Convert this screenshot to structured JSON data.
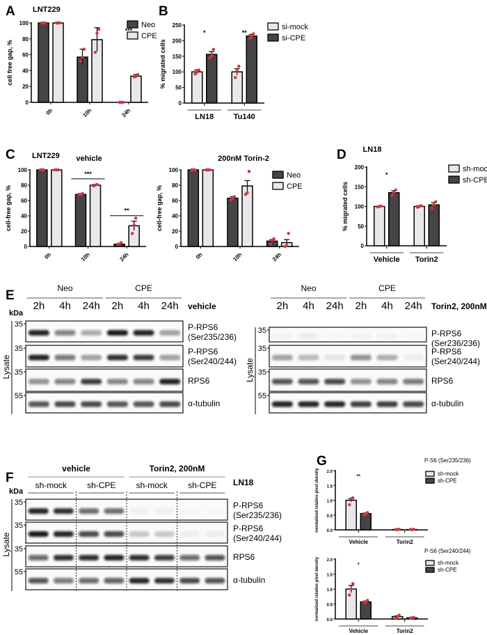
{
  "panel_letters": {
    "A": "A",
    "B": "B",
    "C": "C",
    "D": "D",
    "E": "E",
    "F": "F",
    "G": "G"
  },
  "colors": {
    "dark_bar": "#454545",
    "light_bar": "#e8e8e8",
    "points": "#d8323c"
  },
  "chart_data": [
    {
      "id": "A",
      "type": "bar",
      "title": "LNT229",
      "ylabel": "cell free gap, %",
      "categories": [
        "0h",
        "10h",
        "24h"
      ],
      "ylim": [
        0,
        100
      ],
      "yticks": [
        0,
        20,
        40,
        60,
        80,
        100
      ],
      "legend": "top-right",
      "series": [
        {
          "name": "Neo",
          "color": "dark",
          "values": [
            100,
            57,
            0
          ],
          "errors": [
            0,
            10,
            0
          ],
          "points": [
            [
              100,
              100,
              100
            ],
            [
              52,
              57,
              67
            ],
            [
              0,
              0,
              0
            ]
          ]
        },
        {
          "name": "CPE",
          "color": "light",
          "values": [
            100,
            79,
            33
          ],
          "errors": [
            0,
            15,
            2
          ],
          "points": [
            [
              100,
              100,
              100
            ],
            [
              63,
              87,
              92
            ],
            [
              32,
              33,
              35
            ]
          ]
        }
      ],
      "significance": [
        {
          "category": "24h",
          "label": "***"
        }
      ]
    },
    {
      "id": "B",
      "type": "bar",
      "title": "",
      "ylabel": "% migrated cells",
      "categories": [
        "LN18",
        "Tu140"
      ],
      "ylim": [
        0,
        250
      ],
      "yticks": [
        0,
        50,
        100,
        150,
        200,
        250
      ],
      "legend": "top-right",
      "series": [
        {
          "name": "si-mock",
          "color": "light",
          "values": [
            100,
            100
          ],
          "errors": [
            6,
            10
          ],
          "points": [
            [
              93,
              100,
              106
            ],
            [
              82,
              103,
              118
            ]
          ]
        },
        {
          "name": "si-CPE",
          "color": "dark",
          "values": [
            156,
            215
          ],
          "errors": [
            9,
            5
          ],
          "points": [
            [
              145,
              152,
              172
            ],
            [
              208,
              214,
              222
            ]
          ]
        }
      ],
      "significance": [
        {
          "category": "LN18",
          "label": "*"
        },
        {
          "category": "Tu140",
          "label": "**"
        }
      ]
    },
    {
      "id": "C1",
      "type": "bar",
      "title": "vehicle",
      "ylabel": "cell-free gap, %",
      "categories": [
        "0h",
        "10h",
        "24h"
      ],
      "ylim": [
        0,
        100
      ],
      "yticks": [
        0,
        20,
        40,
        60,
        80,
        100
      ],
      "series": [
        {
          "name": "Neo",
          "color": "dark",
          "values": [
            100,
            68,
            3
          ],
          "errors": [
            0,
            1,
            1
          ],
          "points": [
            [
              100,
              100,
              100
            ],
            [
              68,
              68,
              69
            ],
            [
              3,
              3,
              5
            ]
          ]
        },
        {
          "name": "CPE",
          "color": "light",
          "values": [
            100,
            80,
            27
          ],
          "errors": [
            0,
            1,
            6
          ],
          "points": [
            [
              100,
              100,
              100
            ],
            [
              79,
              80,
              81
            ],
            [
              17,
              28,
              37
            ]
          ]
        }
      ],
      "significance": [
        {
          "category": "10h",
          "label": "***"
        },
        {
          "category": "24h",
          "label": "**"
        }
      ]
    },
    {
      "id": "C2",
      "type": "bar",
      "title": "200nM Torin-2",
      "ylabel": "cell-free gap, %",
      "categories": [
        "0h",
        "10h",
        "24h"
      ],
      "ylim": [
        0,
        100
      ],
      "yticks": [
        0,
        20,
        40,
        60,
        80,
        100
      ],
      "legend": "top-right",
      "series": [
        {
          "name": "Neo",
          "color": "dark",
          "values": [
            100,
            63,
            7
          ],
          "errors": [
            0,
            2,
            2
          ],
          "points": [
            [
              100,
              100,
              100
            ],
            [
              61,
              63,
              65
            ],
            [
              3,
              8,
              10
            ]
          ]
        },
        {
          "name": "CPE",
          "color": "light",
          "values": [
            100,
            79,
            5
          ],
          "errors": [
            0,
            7,
            4
          ],
          "points": [
            [
              100,
              100,
              100
            ],
            [
              68,
              70,
              98
            ],
            [
              0,
              1,
              17
            ]
          ]
        }
      ],
      "significance": []
    },
    {
      "id": "D",
      "type": "bar",
      "title": "LN18",
      "ylabel": "% migrated cells",
      "categories": [
        "Vehicle",
        "Torin2"
      ],
      "ylim": [
        0,
        200
      ],
      "yticks": [
        0,
        50,
        100,
        150,
        200
      ],
      "legend": "top-right",
      "series": [
        {
          "name": "sh-mock",
          "color": "light",
          "values": [
            100,
            100
          ],
          "errors": [
            1,
            2
          ],
          "points": [
            [
              99,
              100,
              101
            ],
            [
              98,
              100,
              102
            ]
          ]
        },
        {
          "name": "sh-CPE",
          "color": "dark",
          "values": [
            135,
            104
          ],
          "errors": [
            5,
            6
          ],
          "points": [
            [
              128,
              135,
              142
            ],
            [
              96,
              104,
              112
            ]
          ]
        }
      ],
      "significance": [
        {
          "category": "Vehicle",
          "label": "*"
        }
      ]
    },
    {
      "id": "G1",
      "type": "bar",
      "title": "P-S6 (Ser235/236)",
      "ylabel": "normalized relative pixel density",
      "categories": [
        "Vehicle",
        "Torin2"
      ],
      "ylim": [
        0,
        2.0
      ],
      "yticks": [
        "0.0",
        "0.5",
        "1.0",
        "1.5",
        "2.0"
      ],
      "legend": "top-right",
      "series": [
        {
          "name": "sh-mock",
          "color": "light",
          "values": [
            1.0,
            0.01
          ],
          "errors": [
            0.05,
            0.005
          ],
          "points": [
            [
              0.85,
              1.05,
              1.08
            ],
            [
              0.01,
              0.01,
              0.02
            ]
          ]
        },
        {
          "name": "sh-CPE",
          "color": "dark",
          "values": [
            0.55,
            0.01
          ],
          "errors": [
            0.02,
            0.005
          ],
          "points": [
            [
              0.52,
              0.55,
              0.58
            ],
            [
              0.01,
              0.01,
              0.02
            ]
          ]
        }
      ],
      "significance": [
        {
          "category": "Vehicle",
          "label": "**"
        }
      ]
    },
    {
      "id": "G2",
      "type": "bar",
      "title": "P-S6 (Ser240/244)",
      "ylabel": "normalized relative pixel density",
      "categories": [
        "Vehicle",
        "Torin2"
      ],
      "ylim": [
        0,
        2.0
      ],
      "yticks": [
        "0.0",
        "0.5",
        "1.0",
        "1.5",
        "2.0"
      ],
      "legend": "top-right",
      "series": [
        {
          "name": "sh-mock",
          "color": "light",
          "values": [
            1.0,
            0.08
          ],
          "errors": [
            0.12,
            0.03
          ],
          "points": [
            [
              0.8,
              1.0,
              1.18
            ],
            [
              0.03,
              0.08,
              0.13
            ]
          ]
        },
        {
          "name": "sh-CPE",
          "color": "dark",
          "values": [
            0.57,
            0.04
          ],
          "errors": [
            0.03,
            0.01
          ],
          "points": [
            [
              0.54,
              0.57,
              0.62
            ],
            [
              0.03,
              0.04,
              0.05
            ]
          ]
        }
      ],
      "significance": [
        {
          "category": "Vehicle",
          "label": "*"
        }
      ]
    }
  ],
  "blots": {
    "E_left": {
      "groups": [
        "Neo",
        "CPE"
      ],
      "times": [
        "2h",
        "4h",
        "24h",
        "2h",
        "4h",
        "24h"
      ],
      "condition": "vehicle",
      "kda": "kDa",
      "lysate": "Lysate",
      "rows": [
        {
          "marker": "35",
          "label1": "P-RPS6",
          "label2": "(Ser235/236)",
          "band_intensity": [
            0.9,
            0.5,
            0.3,
            0.95,
            0.9,
            0.35
          ]
        },
        {
          "marker": "35",
          "label1": "P-RPS6",
          "label2": "(Ser240/244)",
          "band_intensity": [
            0.9,
            0.55,
            0.35,
            0.85,
            0.8,
            0.35
          ]
        },
        {
          "marker": "35",
          "label1": "RPS6",
          "label2": "",
          "band_intensity": [
            0.4,
            0.5,
            0.8,
            0.5,
            0.5,
            0.9
          ]
        },
        {
          "marker": "55",
          "label1": "α-tubulin",
          "label2": "",
          "band_intensity": [
            0.7,
            0.75,
            0.75,
            0.7,
            0.7,
            0.75
          ]
        }
      ]
    },
    "E_right": {
      "groups": [
        "Neo",
        "CPE"
      ],
      "times": [
        "2h",
        "4h",
        "24h",
        "2h",
        "4h",
        "24h"
      ],
      "condition": "Torin2, 200nM",
      "lysate": "Lysate",
      "rows": [
        {
          "marker": "35",
          "label1": "P-RPS6",
          "label2": "(Ser236/236)",
          "band_intensity": [
            0.03,
            0.05,
            0.02,
            0.03,
            0.03,
            0.02
          ]
        },
        {
          "marker": "35",
          "label1": "P-RPS6",
          "label2": "(Ser240/244)",
          "band_intensity": [
            0.35,
            0.25,
            0.08,
            0.45,
            0.3,
            0.05
          ]
        },
        {
          "marker": "35",
          "label1": "RPS6",
          "label2": "",
          "band_intensity": [
            0.7,
            0.7,
            0.75,
            0.45,
            0.5,
            0.55
          ]
        },
        {
          "marker": "55",
          "label1": "α-tubulin",
          "label2": "",
          "band_intensity": [
            0.9,
            0.9,
            0.9,
            0.8,
            0.8,
            0.75
          ]
        }
      ]
    },
    "F": {
      "conditions": [
        "vehicle",
        "Torin2, 200nM"
      ],
      "groups": [
        "sh-mock",
        "sh-CPE",
        "sh-mock",
        "sh-CPE"
      ],
      "cell_line": "LN18",
      "kda": "kDa",
      "lysate": "Lysate",
      "rows": [
        {
          "marker": "35",
          "label1": "P-RPS6",
          "label2": "(Ser235/236)",
          "band_intensity": [
            0.9,
            0.85,
            0.6,
            0.6,
            0.04,
            0.04,
            0.02,
            0.02
          ]
        },
        {
          "marker": "35",
          "label1": "P-RPS6",
          "label2": "(Ser240/244)",
          "band_intensity": [
            0.95,
            0.9,
            0.75,
            0.75,
            0.2,
            0.2,
            0.05,
            0.05
          ]
        },
        {
          "marker": "35",
          "label1": "RPS6",
          "label2": "",
          "band_intensity": [
            0.6,
            0.85,
            0.85,
            0.9,
            0.85,
            0.8,
            0.6,
            0.7
          ]
        },
        {
          "marker": "55",
          "label1": "α-tubulin",
          "label2": "",
          "band_intensity": [
            0.7,
            0.55,
            0.6,
            0.65,
            0.9,
            0.85,
            0.75,
            0.7
          ]
        }
      ]
    }
  }
}
